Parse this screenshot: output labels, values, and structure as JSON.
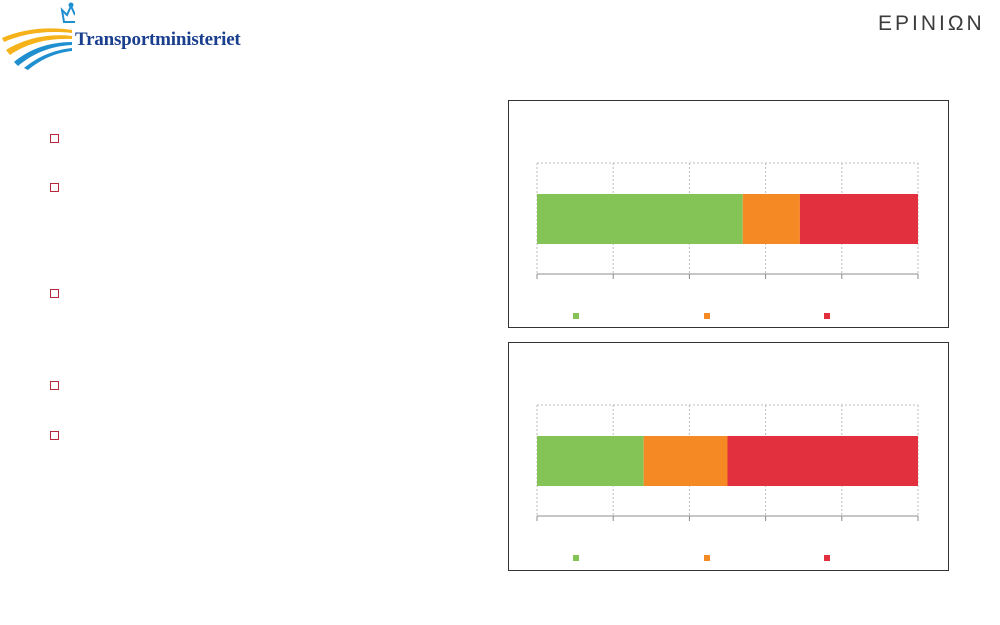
{
  "header": {
    "left_logo_text": "Transportministeriet",
    "left_logo_icon": "crown-icon",
    "right_logo_text": "EPINIΩN"
  },
  "bullets": {
    "count": 5
  },
  "colors": {
    "green": "#84c456",
    "orange": "#f58a24",
    "red": "#e3303f",
    "bullet": "#b5283a"
  },
  "chart_data": [
    {
      "type": "bar",
      "orientation": "horizontal",
      "stacked": true,
      "categories": [
        ""
      ],
      "series": [
        {
          "values": [
            54
          ],
          "color": "#84c456"
        },
        {
          "values": [
            15
          ],
          "color": "#f58a24"
        },
        {
          "values": [
            31
          ],
          "color": "#e3303f"
        }
      ],
      "xlim": [
        0,
        100
      ],
      "grid": true,
      "legend": "bottom"
    },
    {
      "type": "bar",
      "orientation": "horizontal",
      "stacked": true,
      "categories": [
        ""
      ],
      "series": [
        {
          "values": [
            28
          ],
          "color": "#84c456"
        },
        {
          "values": [
            22
          ],
          "color": "#f58a24"
        },
        {
          "values": [
            50
          ],
          "color": "#e3303f"
        }
      ],
      "xlim": [
        0,
        100
      ],
      "grid": true,
      "legend": "bottom"
    }
  ]
}
